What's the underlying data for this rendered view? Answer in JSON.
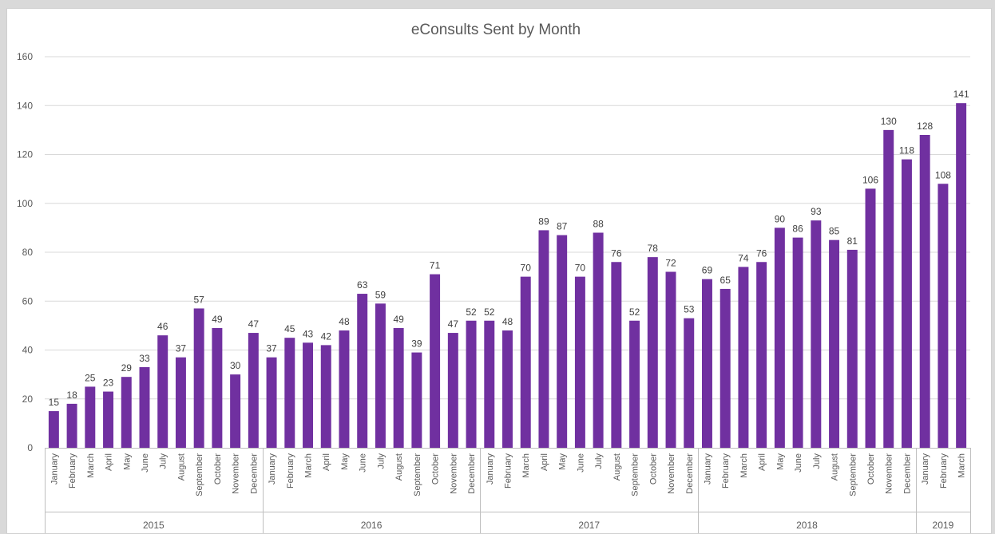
{
  "chart_data": {
    "type": "bar",
    "title": "eConsults Sent by Month",
    "xlabel": "",
    "ylabel": "",
    "ylim": [
      0,
      160
    ],
    "yticks": [
      0,
      20,
      40,
      60,
      80,
      100,
      120,
      140,
      160
    ],
    "grid": true,
    "legend": "none",
    "bar_color": "#7030a0",
    "groups": [
      {
        "year": "2015",
        "months": [
          "January",
          "February",
          "March",
          "April",
          "May",
          "June",
          "July",
          "August",
          "September",
          "October",
          "November",
          "December"
        ],
        "values": [
          15,
          18,
          25,
          23,
          29,
          33,
          46,
          37,
          57,
          49,
          30,
          47
        ]
      },
      {
        "year": "2016",
        "months": [
          "January",
          "February",
          "March",
          "April",
          "May",
          "June",
          "July",
          "August",
          "September",
          "October",
          "November",
          "December"
        ],
        "values": [
          37,
          45,
          43,
          42,
          48,
          63,
          59,
          49,
          39,
          71,
          47,
          52
        ]
      },
      {
        "year": "2017",
        "months": [
          "January",
          "February",
          "March",
          "April",
          "May",
          "June",
          "July",
          "August",
          "September",
          "October",
          "November",
          "December"
        ],
        "values": [
          52,
          48,
          70,
          89,
          87,
          70,
          88,
          76,
          52,
          78,
          72,
          53
        ]
      },
      {
        "year": "2018",
        "months": [
          "January",
          "February",
          "March",
          "April",
          "May",
          "June",
          "July",
          "August",
          "September",
          "October",
          "November",
          "December"
        ],
        "values": [
          69,
          65,
          74,
          76,
          90,
          86,
          93,
          85,
          81,
          106,
          130,
          118
        ]
      },
      {
        "year": "2019",
        "months": [
          "January",
          "February",
          "March"
        ],
        "values": [
          128,
          108,
          141
        ]
      }
    ]
  }
}
